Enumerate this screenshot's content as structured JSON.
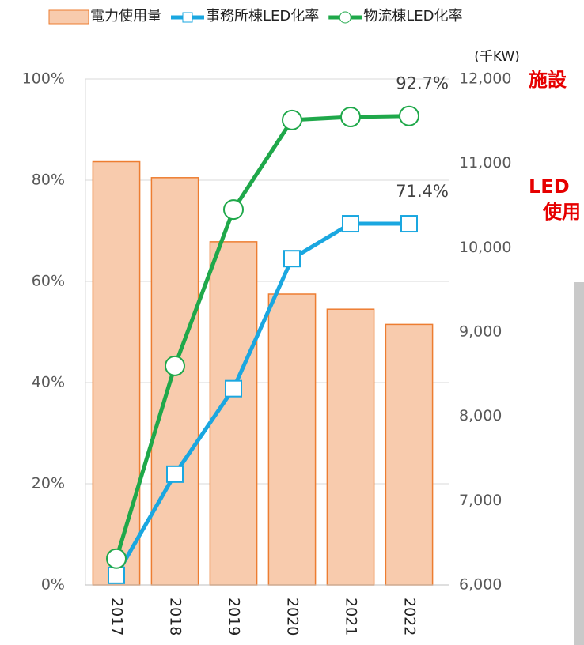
{
  "chart_data": {
    "type": "bar-line",
    "categories": [
      "2017",
      "2018",
      "2019",
      "2020",
      "2021",
      "2022"
    ],
    "series": [
      {
        "name": "電力使用量",
        "type": "bar",
        "axis": "y2",
        "color": "#f8cbad",
        "edge_color": "#ed7d31",
        "values": [
          11020,
          10830,
          10070,
          9450,
          9270,
          9090
        ]
      },
      {
        "name": "事務所棟LED化率",
        "type": "line",
        "marker": "square",
        "color": "#1aa7e0",
        "values": [
          1.9,
          21.9,
          38.8,
          64.5,
          71.4,
          71.4
        ],
        "value_labels": [
          null,
          null,
          null,
          null,
          null,
          "71.4%"
        ]
      },
      {
        "name": "物流棟LED化率",
        "type": "line",
        "marker": "circle",
        "color": "#1fa84a",
        "values": [
          5.2,
          43.3,
          74.2,
          91.9,
          92.5,
          92.7
        ],
        "value_labels": [
          null,
          null,
          null,
          null,
          null,
          "92.7%"
        ]
      }
    ],
    "ylim": [
      0,
      100
    ],
    "yticks": [
      {
        "value": 0,
        "label": "0%"
      },
      {
        "value": 20,
        "label": "20%"
      },
      {
        "value": 40,
        "label": "40%"
      },
      {
        "value": 60,
        "label": "60%"
      },
      {
        "value": 80,
        "label": "80%"
      },
      {
        "value": 100,
        "label": "100%"
      }
    ],
    "y2lim": [
      6000,
      12000
    ],
    "y2ticks": [
      {
        "value": 6000,
        "label": "6,000"
      },
      {
        "value": 7000,
        "label": "7,000"
      },
      {
        "value": 8000,
        "label": "8,000"
      },
      {
        "value": 9000,
        "label": "9,000"
      },
      {
        "value": 10000,
        "label": "10,000"
      },
      {
        "value": 11000,
        "label": "11,000"
      },
      {
        "value": 12000,
        "label": "12,000"
      }
    ],
    "y2_unit": "(千KW)",
    "grid": true
  },
  "side_text": [
    "施設",
    "LED",
    "使用"
  ]
}
